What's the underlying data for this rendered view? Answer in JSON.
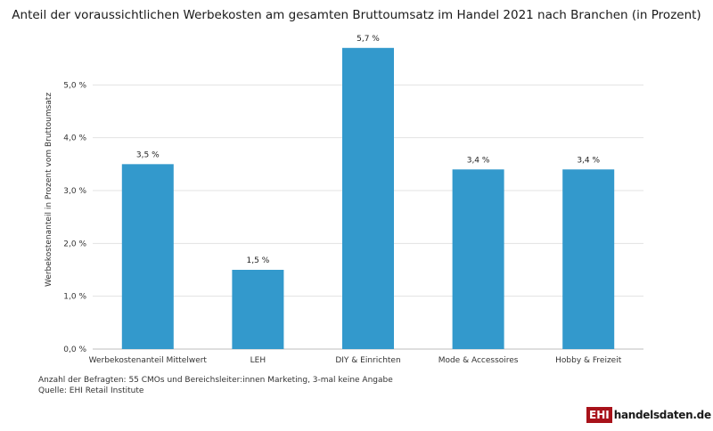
{
  "chart_data": {
    "type": "bar",
    "title": "Anteil der voraussichtlichen Werbekosten am gesamten Bruttoumsatz im Handel 2021 nach Branchen (in Prozent)",
    "xlabel": "",
    "ylabel": "Werbekostenanteil in Prozent vom Bruttoumsatz",
    "categories": [
      "Werbekostenanteil Mittelwert",
      "LEH",
      "DIY & Einrichten",
      "Mode & Accessoires",
      "Hobby & Freizeit"
    ],
    "values": [
      3.5,
      1.5,
      5.7,
      3.4,
      3.4
    ],
    "value_labels": [
      "3,5 %",
      "1,5 %",
      "5,7 %",
      "3,4 %",
      "3,4 %"
    ],
    "ylim": [
      0,
      6
    ],
    "yticks": [
      0,
      1,
      2,
      3,
      4,
      5
    ],
    "ytick_labels": [
      "0,0 %",
      "1,0 %",
      "2,0 %",
      "3,0 %",
      "4,0 %",
      "5,0 %"
    ],
    "bar_color": "#3399cc",
    "grid": true
  },
  "footnote": {
    "line1": "Anzahl der Befragten: 55 CMOs und Bereichsleiter:innen Marketing, 3-mal keine Angabe",
    "line2": "Quelle: EHI Retail Institute"
  },
  "logo": {
    "mark": "EHI",
    "text": "handelsdaten.de"
  }
}
